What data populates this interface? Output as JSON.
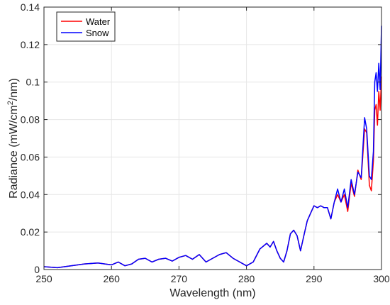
{
  "chart_data": {
    "type": "line",
    "title": "",
    "xlabel": "Wavelength (nm)",
    "ylabel_prefix": "Radiance (mW/cm",
    "ylabel_sup": "2",
    "ylabel_suffix": "/nm)",
    "xlim": [
      250,
      300
    ],
    "ylim": [
      0,
      0.14
    ],
    "xticks": [
      "250",
      "260",
      "270",
      "280",
      "290",
      "300"
    ],
    "yticks": [
      "0",
      "0.02",
      "0.04",
      "0.06",
      "0.08",
      "0.1",
      "0.12",
      "0.14"
    ],
    "grid": true,
    "legend_position": "top-left",
    "series": [
      {
        "name": "Water",
        "color": "#ff0000",
        "x": [
          250,
          252,
          254,
          256,
          258,
          259,
          260,
          261,
          262,
          263,
          264,
          265,
          266,
          267,
          268,
          269,
          270,
          271,
          272,
          273,
          274,
          275,
          276,
          277,
          278,
          279,
          280,
          281,
          282,
          283,
          283.5,
          284,
          284.5,
          285,
          285.5,
          286,
          286.5,
          287,
          287.5,
          288,
          288.5,
          289,
          289.5,
          290,
          290.5,
          291,
          291.5,
          292,
          292.5,
          293,
          293.5,
          294,
          294.5,
          295,
          295.5,
          296,
          296.5,
          297,
          297.5,
          297.8,
          298.2,
          298.5,
          298.8,
          299,
          299.2,
          299.4,
          299.6,
          299.8,
          300
        ],
        "y": [
          0.0015,
          0.001,
          0.002,
          0.003,
          0.0035,
          0.003,
          0.0025,
          0.004,
          0.002,
          0.003,
          0.0055,
          0.006,
          0.004,
          0.0055,
          0.006,
          0.0045,
          0.0065,
          0.0075,
          0.0055,
          0.008,
          0.004,
          0.006,
          0.008,
          0.009,
          0.006,
          0.004,
          0.002,
          0.004,
          0.011,
          0.014,
          0.012,
          0.015,
          0.01,
          0.006,
          0.004,
          0.01,
          0.019,
          0.021,
          0.018,
          0.01,
          0.018,
          0.026,
          0.03,
          0.034,
          0.033,
          0.034,
          0.033,
          0.033,
          0.027,
          0.036,
          0.04,
          0.036,
          0.04,
          0.031,
          0.046,
          0.039,
          0.053,
          0.048,
          0.075,
          0.073,
          0.045,
          0.042,
          0.058,
          0.085,
          0.088,
          0.077,
          0.095,
          0.085,
          0.103
        ]
      },
      {
        "name": "Snow",
        "color": "#0000ff",
        "x": [
          250,
          252,
          254,
          256,
          258,
          259,
          260,
          261,
          262,
          263,
          264,
          265,
          266,
          267,
          268,
          269,
          270,
          271,
          272,
          273,
          274,
          275,
          276,
          277,
          278,
          279,
          280,
          281,
          282,
          283,
          283.5,
          284,
          284.5,
          285,
          285.5,
          286,
          286.5,
          287,
          287.5,
          288,
          288.5,
          289,
          289.5,
          290,
          290.5,
          291,
          291.5,
          292,
          292.5,
          293,
          293.5,
          294,
          294.5,
          295,
          295.5,
          296,
          296.5,
          297,
          297.5,
          297.8,
          298.2,
          298.5,
          298.8,
          299,
          299.2,
          299.4,
          299.6,
          299.8,
          300
        ],
        "y": [
          0.0015,
          0.001,
          0.002,
          0.003,
          0.0035,
          0.003,
          0.0025,
          0.004,
          0.002,
          0.003,
          0.0055,
          0.006,
          0.004,
          0.0055,
          0.006,
          0.0045,
          0.0065,
          0.0075,
          0.0055,
          0.008,
          0.004,
          0.006,
          0.008,
          0.009,
          0.006,
          0.004,
          0.002,
          0.004,
          0.011,
          0.014,
          0.012,
          0.015,
          0.01,
          0.006,
          0.004,
          0.01,
          0.019,
          0.021,
          0.018,
          0.01,
          0.018,
          0.026,
          0.03,
          0.034,
          0.033,
          0.034,
          0.033,
          0.033,
          0.027,
          0.036,
          0.043,
          0.036,
          0.043,
          0.033,
          0.048,
          0.04,
          0.052,
          0.049,
          0.081,
          0.075,
          0.05,
          0.048,
          0.063,
          0.1,
          0.105,
          0.095,
          0.11,
          0.096,
          0.13
        ]
      }
    ]
  }
}
